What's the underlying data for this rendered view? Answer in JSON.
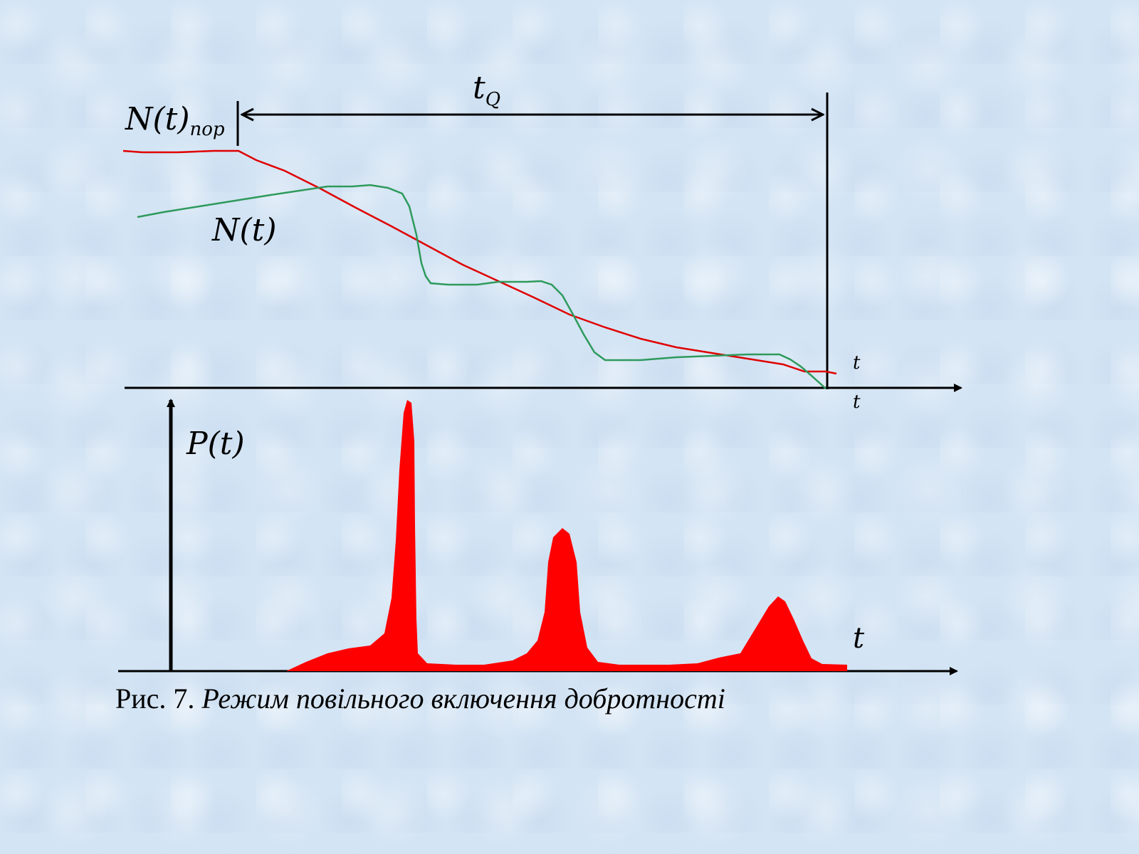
{
  "diagram": {
    "labels": {
      "n_threshold_main": "N(t)",
      "n_threshold_sub": "пор",
      "n_curve": "N(t)",
      "p_curve": "P(t)",
      "t_q_main": "t",
      "t_q_sub": "Q",
      "t_upper_right": "t",
      "t_axis_upper": "t",
      "t_axis_lower": "t"
    },
    "colors": {
      "threshold_curve": "#e00000",
      "inversion_curve": "#2e9a5c",
      "pulse_fill": "#ff0000",
      "axes": "#000000"
    }
  },
  "caption": {
    "prefix": "Рис. 7. ",
    "title": "Режим повільного включення добротності"
  }
}
